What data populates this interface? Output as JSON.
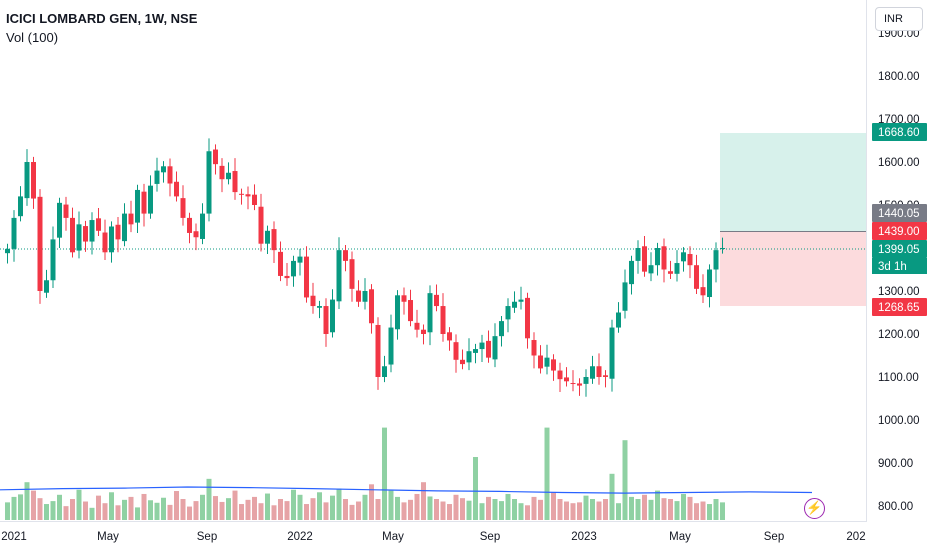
{
  "legend": {
    "symbol": "ICICI LOMBARD GEN, 1W, NSE",
    "volume": "Vol (100)"
  },
  "currency_button": "INR",
  "price_axis": {
    "ticks": [
      "1900.00",
      "1800.00",
      "1700.00",
      "1600.00",
      "1500.00",
      "1400.00",
      "1300.00",
      "1200.00",
      "1100.00",
      "1000.00",
      "900.00",
      "800.00"
    ],
    "labels": [
      {
        "name": "target-price-label",
        "text": "1668.60",
        "color": "#089981"
      },
      {
        "name": "resistance-price-label",
        "text": "1440.05",
        "color": "#787b86"
      },
      {
        "name": "entry-price-label",
        "text": "1439.00",
        "color": "#f23645"
      },
      {
        "name": "last-price-label",
        "text": "1399.05",
        "color": "#089981"
      },
      {
        "name": "stop-price-label",
        "text": "1268.65",
        "color": "#f23645"
      }
    ],
    "countdown": "3d 1h"
  },
  "time_axis": {
    "ticks": [
      "2021",
      "May",
      "Sep",
      "2022",
      "May",
      "Sep",
      "2023",
      "May",
      "Sep",
      "202"
    ]
  },
  "colors": {
    "up": "#089981",
    "down": "#f23645",
    "volume_up": "#8fd1a3",
    "volume_down": "#e6a3a6",
    "volume_ma": "#2962ff",
    "target_zone": "#d3efe9",
    "stop_zone": "#fcd7d9"
  },
  "chart_data": {
    "type": "candlestick",
    "title": "ICICI LOMBARD GEN, 1W, NSE",
    "x_range": [
      "2020-12",
      "2023-11"
    ],
    "y_range": [
      780,
      1920
    ],
    "last_price": 1399.05,
    "series": [
      {
        "name": "price-weekly-close",
        "values": [
          1398,
          1470,
          1520,
          1600,
          1515,
          1300,
          1325,
          1420,
          1505,
          1470,
          1390,
          1455,
          1415,
          1465,
          1440,
          1390,
          1450,
          1420,
          1480,
          1455,
          1535,
          1480,
          1545,
          1580,
          1590,
          1550,
          1520,
          1470,
          1435,
          1425,
          1480,
          1625,
          1595,
          1560,
          1575,
          1530,
          1525,
          1520,
          1500,
          1410,
          1440,
          1395,
          1335,
          1330,
          1370,
          1380,
          1285,
          1265,
          1265,
          1200,
          1280,
          1395,
          1370,
          1305,
          1275,
          1300,
          1225,
          1100,
          1125,
          1215,
          1290,
          1275,
          1230,
          1210,
          1200,
          1295,
          1265,
          1200,
          1185,
          1140,
          1130,
          1160,
          1165,
          1180,
          1145,
          1195,
          1230,
          1265,
          1275,
          1280,
          1190,
          1150,
          1120,
          1145,
          1115,
          1095,
          1090,
          1085,
          1080,
          1100,
          1125,
          1100,
          1100,
          1215,
          1250,
          1320,
          1370,
          1400,
          1345,
          1360,
          1400,
          1350,
          1340,
          1365,
          1390,
          1360,
          1305,
          1290,
          1350,
          1395,
          1400
        ]
      },
      {
        "name": "volume-ma",
        "values": [
          855,
          857,
          858,
          860,
          859,
          857,
          855,
          853,
          852,
          850,
          849,
          850,
          851,
          850
        ]
      }
    ],
    "position_tool": {
      "entry": 1439.0,
      "target": 1668.6,
      "stop": 1268.65
    }
  }
}
